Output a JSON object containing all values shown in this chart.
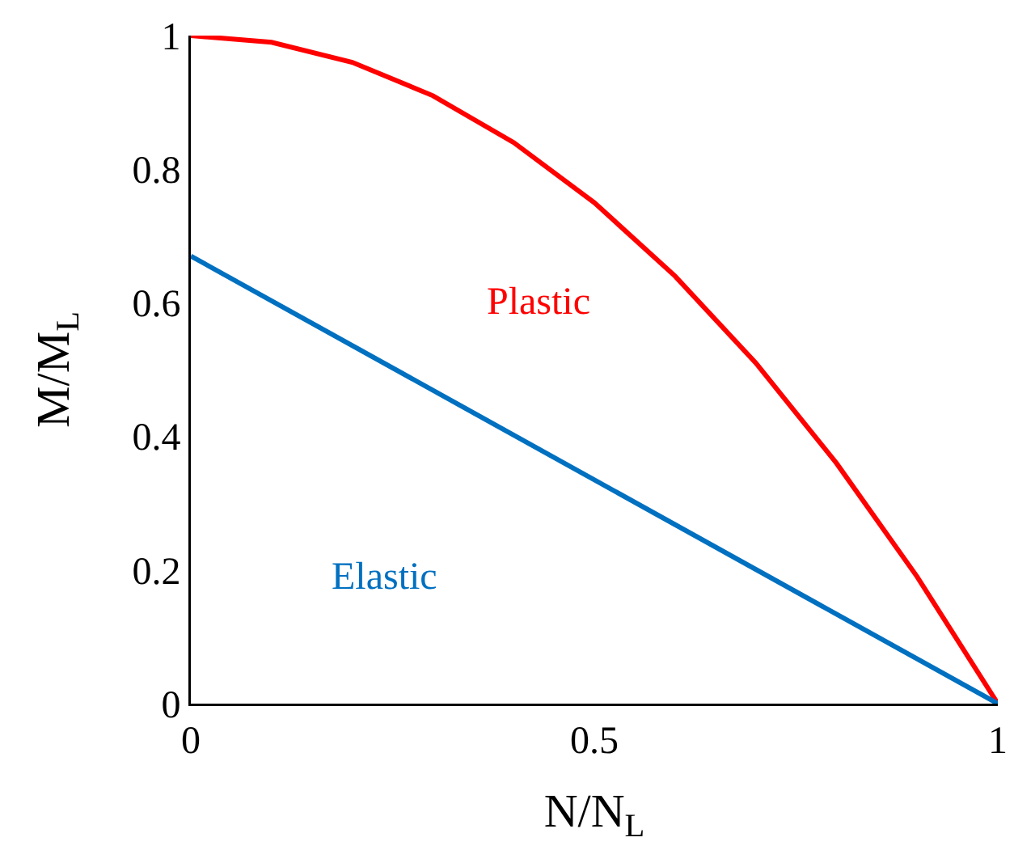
{
  "chart_data": {
    "type": "line",
    "xlabel": "N/N$_{L}$",
    "ylabel": "M/M$_{L}$",
    "x": [
      0,
      0.1,
      0.2,
      0.3,
      0.4,
      0.5,
      0.6,
      0.7,
      0.8,
      0.9,
      1
    ],
    "series": [
      {
        "name": "Plastic",
        "color": "#ff0000",
        "values": [
          1,
          0.99,
          0.96,
          0.91,
          0.84,
          0.75,
          0.64,
          0.51,
          0.36,
          0.19,
          0
        ]
      },
      {
        "name": "Elastic",
        "color": "#0070c0",
        "x": [
          0,
          1
        ],
        "values": [
          0.67,
          0
        ]
      }
    ],
    "xlim": [
      0,
      1
    ],
    "xticks": [
      0,
      0.5,
      1
    ],
    "ylim": [
      0,
      1
    ],
    "yticks": [
      0,
      0.2,
      0.4,
      0.6,
      0.8,
      1
    ],
    "grid": false,
    "legend": false,
    "marker": "none",
    "line_style": "solid"
  }
}
